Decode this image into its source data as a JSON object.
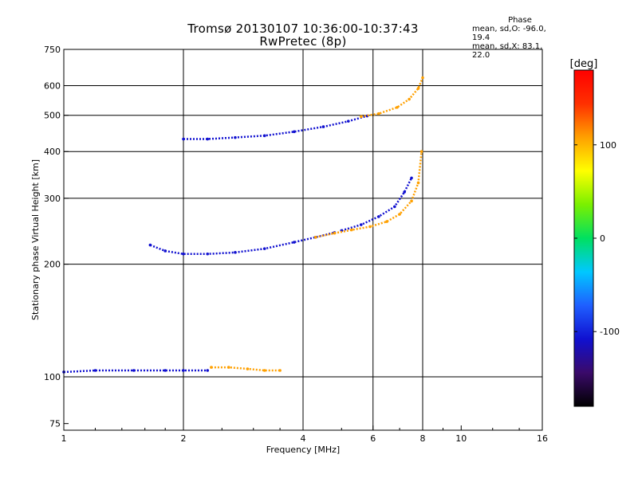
{
  "header": {
    "title_line1": "Tromsø 20130107 10:36:00-10:37:43",
    "title_line2": "RwPretec (8p)"
  },
  "phase_info": {
    "title": "Phase",
    "line1": "mean, sd,O: -96.0, 19.4",
    "line2": "mean, sd,X: 83.1, 22.0"
  },
  "colors": {
    "gridline": "#000000",
    "colorbar_stops": [
      "#000000",
      "#3a0a6a",
      "#1010d0",
      "#1f5fff",
      "#00c8ff",
      "#00e060",
      "#7af000",
      "#ffff00",
      "#ffa000",
      "#ff3000",
      "#ff0000"
    ]
  },
  "chart_data": {
    "type": "scatter",
    "xlabel": "Frequency [MHz]",
    "ylabel": "Stationary phase Virtual Height [km]",
    "x_scale": "log",
    "y_scale": "log",
    "xlim": [
      1,
      16
    ],
    "ylim": [
      72,
      750
    ],
    "x_ticks": [
      1,
      2,
      4,
      6,
      8,
      10,
      16
    ],
    "x_tick_labels": [
      "1",
      "2",
      "4",
      "6",
      "8",
      "10",
      "16"
    ],
    "x_major_grid": [
      2,
      4,
      6,
      8
    ],
    "y_ticks": [
      75,
      100,
      200,
      300,
      400,
      500,
      600,
      750
    ],
    "y_tick_labels": [
      "75",
      "100",
      "200",
      "300",
      "400",
      "500",
      "600",
      "750"
    ],
    "y_major_grid": [
      100,
      200,
      300,
      400,
      500,
      600
    ],
    "grid": true,
    "colorbar": {
      "label": "[deg]",
      "range": [
        -180,
        180
      ],
      "ticks": [
        100,
        0,
        -100
      ],
      "tick_labels": [
        "100",
        "0",
        "-100"
      ]
    },
    "series": [
      {
        "color_phase": -100,
        "traces": [
          {
            "x": [
              1.0,
              1.2,
              1.5,
              1.8,
              2.0,
              2.3
            ],
            "y": [
              103,
              104,
              104,
              104,
              104,
              104
            ]
          },
          {
            "x": [
              2.0,
              2.3,
              2.7,
              3.2,
              3.8,
              4.5,
              5.2,
              5.8
            ],
            "y": [
              432,
              432,
              436,
              441,
              452,
              466,
              482,
              498
            ]
          },
          {
            "x": [
              1.65,
              1.8,
              2.0,
              2.3,
              2.7,
              3.2,
              3.8,
              4.3,
              4.8
            ],
            "y": [
              225,
              217,
              213,
              213,
              215,
              220,
              229,
              236,
              243
            ]
          },
          {
            "x": [
              5.0,
              5.6,
              6.2,
              6.8,
              7.2,
              7.5
            ],
            "y": [
              246,
              255,
              268,
              285,
              312,
              340
            ]
          }
        ]
      },
      {
        "color_phase": 95,
        "traces": [
          {
            "x": [
              4.3,
              4.8,
              5.3,
              5.9,
              6.5,
              7.0,
              7.5,
              7.8,
              7.95
            ],
            "y": [
              236,
              242,
              247,
              252,
              260,
              272,
              295,
              330,
              400
            ]
          },
          {
            "x": [
              5.6,
              6.2,
              6.9,
              7.4,
              7.8,
              8.0
            ],
            "y": [
              496,
              505,
              525,
              552,
              590,
              630
            ]
          },
          {
            "x": [
              2.35,
              2.6,
              2.9,
              3.2,
              3.5
            ],
            "y": [
              106,
              106,
              105,
              104,
              104
            ]
          }
        ]
      }
    ]
  }
}
